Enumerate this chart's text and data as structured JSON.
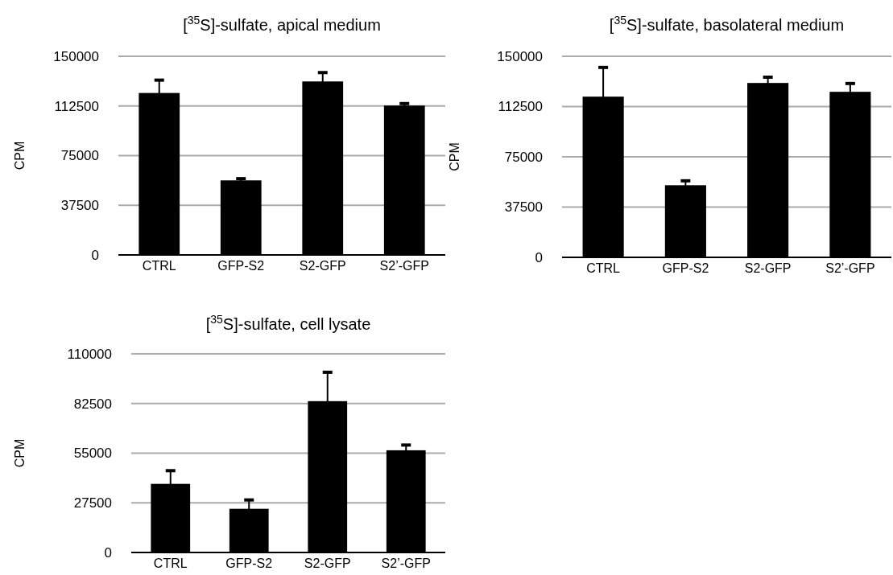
{
  "chart_data": [
    {
      "type": "bar",
      "title": "[$^{35}$S]-sulfate, apical medium",
      "ylabel": "CPM",
      "categories": [
        "CTRL",
        "GFP-S2",
        "S2-GFP",
        "S2’-GFP"
      ],
      "values": [
        122300,
        56300,
        131000,
        112800
      ],
      "errors": [
        9700,
        1300,
        6700,
        1500
      ],
      "color": "#000000",
      "ylim": [
        0,
        150000
      ],
      "yticks": [
        0,
        37500,
        75000,
        112500,
        150000
      ],
      "grid": "y"
    },
    {
      "type": "bar",
      "title": "[$^{35}$S]-sulfate, basolateral medium",
      "ylabel": "CPM",
      "categories": [
        "CTRL",
        "GFP-S2",
        "S2-GFP",
        "S2’-GFP"
      ],
      "values": [
        119900,
        53800,
        130100,
        123500
      ],
      "errors": [
        21800,
        3300,
        4300,
        6200
      ],
      "color": "#000000",
      "ylim": [
        0,
        150000
      ],
      "yticks": [
        0,
        37500,
        75000,
        112500,
        150000
      ],
      "grid": "y"
    },
    {
      "type": "bar",
      "title": "[$^{35}$S]-sulfate, cell lysate",
      "ylabel": "CPM",
      "categories": [
        "CTRL",
        "GFP-S2",
        "S2-GFP",
        "S2’-GFP"
      ],
      "values": [
        38000,
        24200,
        83800,
        56600
      ],
      "errors": [
        7300,
        4900,
        16000,
        2900
      ],
      "color": "#000000",
      "ylim": [
        0,
        110000
      ],
      "yticks": [
        0,
        27500,
        55000,
        82500,
        110000
      ],
      "grid": "y"
    }
  ]
}
